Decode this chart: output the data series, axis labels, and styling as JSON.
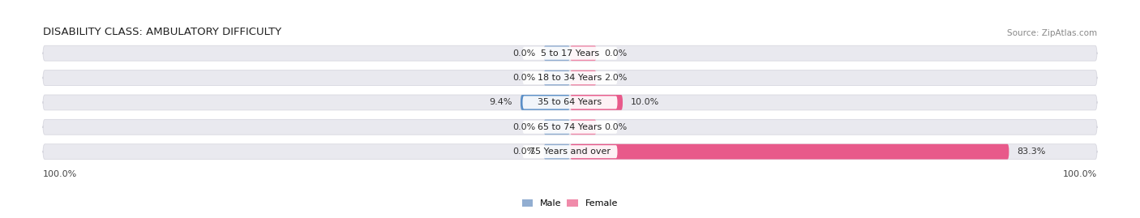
{
  "title": "DISABILITY CLASS: AMBULATORY DIFFICULTY",
  "source": "Source: ZipAtlas.com",
  "categories": [
    "5 to 17 Years",
    "18 to 34 Years",
    "35 to 64 Years",
    "65 to 74 Years",
    "75 Years and over"
  ],
  "male_values": [
    0.0,
    0.0,
    9.4,
    0.0,
    0.0
  ],
  "female_values": [
    0.0,
    2.0,
    10.0,
    0.0,
    83.3
  ],
  "male_color": "#92aed1",
  "female_color": "#f08baa",
  "male_color_dark": "#5b8fc7",
  "female_color_dark": "#e8598a",
  "male_label": "Male",
  "female_label": "Female",
  "bar_bg_color": "#e9e9ef",
  "bar_bg_edge_color": "#d8d8e0",
  "max_val": 100.0,
  "min_bar_display": 5.0,
  "axis_left_label": "100.0%",
  "axis_right_label": "100.0%",
  "title_fontsize": 9.5,
  "label_fontsize": 8,
  "category_fontsize": 8,
  "tick_fontsize": 8,
  "source_fontsize": 7.5
}
